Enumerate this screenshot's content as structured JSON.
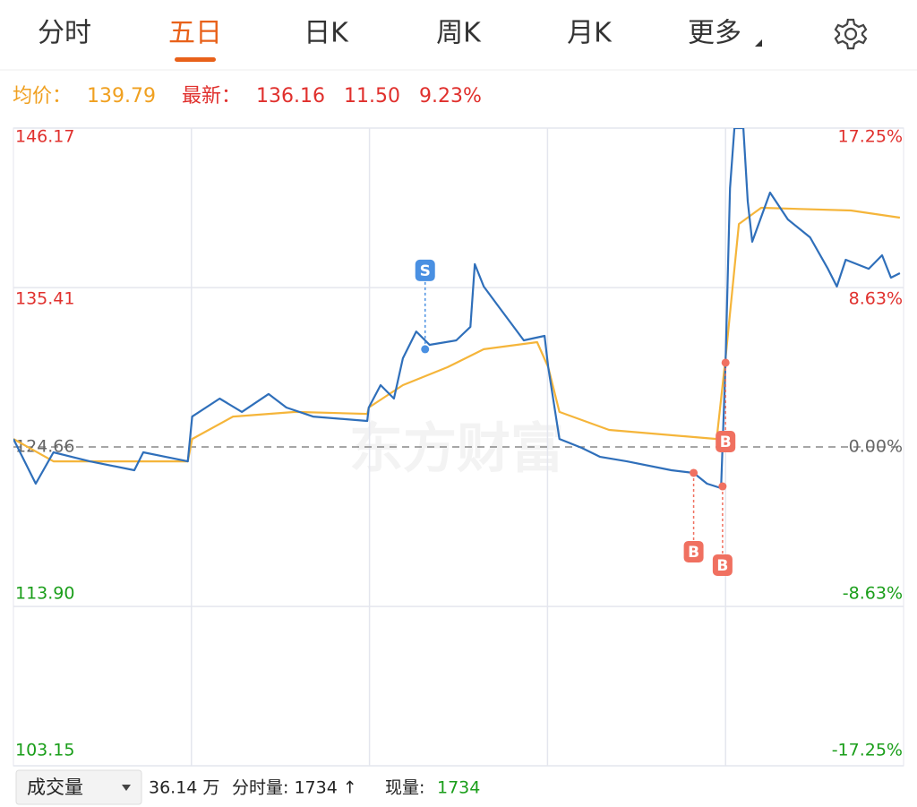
{
  "tabs": [
    "分时",
    "五日",
    "日K",
    "周K",
    "月K",
    "更多"
  ],
  "active_tab": 1,
  "info": {
    "avg_label": "均价：",
    "avg": 139.79,
    "latest_label": "最新：",
    "latest": 136.16,
    "change": "11.50",
    "change_pct": "9.23%"
  },
  "watermark": "东方财富",
  "chart_data": {
    "type": "line",
    "xlim": [
      0,
      1200
    ],
    "day_breaks": [
      240,
      480,
      720,
      960
    ],
    "ylim": [
      103.15,
      146.17
    ],
    "yticks": [
      146.17,
      135.41,
      124.66,
      {
        "value": 113.9,
        "label": "113.90"
      },
      103.15
    ],
    "y2lim": [
      -17.25,
      17.25
    ],
    "y2ticks": [
      {
        "value": 17.25,
        "label": "17.25%"
      },
      {
        "value": 8.63,
        "label": "8.63%"
      },
      {
        "value": 0,
        "label": "0.00%"
      },
      {
        "value": -8.63,
        "label": "-8.63%"
      },
      {
        "value": -17.25,
        "label": "-17.25%"
      }
    ],
    "up_color": "#e0302d",
    "down_color": "#1a9e1a",
    "flat_color": "#666666",
    "grid": true,
    "series": [
      {
        "color": "#2f6fba",
        "x": [
          0,
          30,
          54,
          103,
          163,
          175,
          235,
          241,
          278,
          308,
          344,
          368,
          404,
          477,
          479,
          495,
          513,
          525,
          543,
          561,
          597,
          616,
          622,
          634,
          652,
          670,
          688,
          716,
          721,
          736,
          766,
          791,
          827,
          887,
          917,
          935,
          954,
          960,
          966,
          972,
          984,
          990,
          996,
          1020,
          1044,
          1074,
          1098,
          1110,
          1122,
          1153,
          1171,
          1183,
          1195
        ],
        "values": [
          125.2,
          122.18,
          124.3,
          123.69,
          123.09,
          124.3,
          123.69,
          126.71,
          127.92,
          127.02,
          128.23,
          127.32,
          126.71,
          126.41,
          127.32,
          128.83,
          127.92,
          130.64,
          132.45,
          131.55,
          131.85,
          132.76,
          136.99,
          135.48,
          134.27,
          133.06,
          131.85,
          132.15,
          130.04,
          125.2,
          124.6,
          123.99,
          123.69,
          123.09,
          122.91,
          122.18,
          121.88,
          130.34,
          142.12,
          146.17,
          146.17,
          141.22,
          138.5,
          141.82,
          140.01,
          138.8,
          136.68,
          135.48,
          137.29,
          136.68,
          137.59,
          136.08,
          136.38
        ]
      },
      {
        "color": "#f5b53a",
        "x": [
          0,
          54,
          235,
          241,
          296,
          380,
          477,
          479,
          525,
          585,
          634,
          706,
          721,
          736,
          803,
          948,
          960,
          978,
          1008,
          1129,
          1195
        ],
        "values": [
          125.2,
          123.69,
          123.69,
          125.2,
          126.71,
          127.02,
          126.89,
          127.32,
          128.83,
          130.04,
          131.25,
          131.73,
          130.04,
          127.02,
          125.81,
          125.2,
          130.64,
          139.7,
          140.79,
          140.61,
          140.13
        ]
      }
    ],
    "trades": [
      {
        "label": "S",
        "x": 555,
        "price": 131.25,
        "color": "#4a90e2"
      },
      {
        "label": "B",
        "x": 960,
        "price": 130.34,
        "color": "#f07060"
      },
      {
        "label": "B",
        "x": 917,
        "price": 122.91,
        "color": "#f07060"
      },
      {
        "label": "B",
        "x": 956,
        "price": 122.0,
        "color": "#f07060"
      }
    ]
  },
  "footer": {
    "dropdown": "成交量",
    "volume": "36.14 万",
    "minute_volume": "分时量: 1734 ↑",
    "current_label": "现量:",
    "current": "1734"
  }
}
